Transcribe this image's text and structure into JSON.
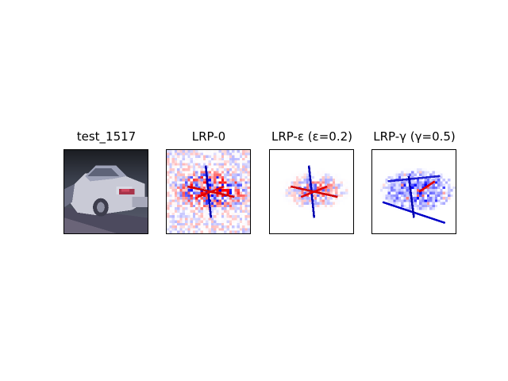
{
  "figure": {
    "panels": [
      {
        "title": "test_1517",
        "kind": "input-image"
      },
      {
        "title": "LRP-0",
        "kind": "relevance-heatmap"
      },
      {
        "title": "LRP-ε (ε=0.2)",
        "kind": "relevance-heatmap"
      },
      {
        "title": "LRP-γ (γ=0.5)",
        "kind": "relevance-heatmap"
      }
    ],
    "colormap": {
      "positive": "#e00000",
      "neutral": "#ffffff",
      "negative": "#0000e0"
    }
  }
}
